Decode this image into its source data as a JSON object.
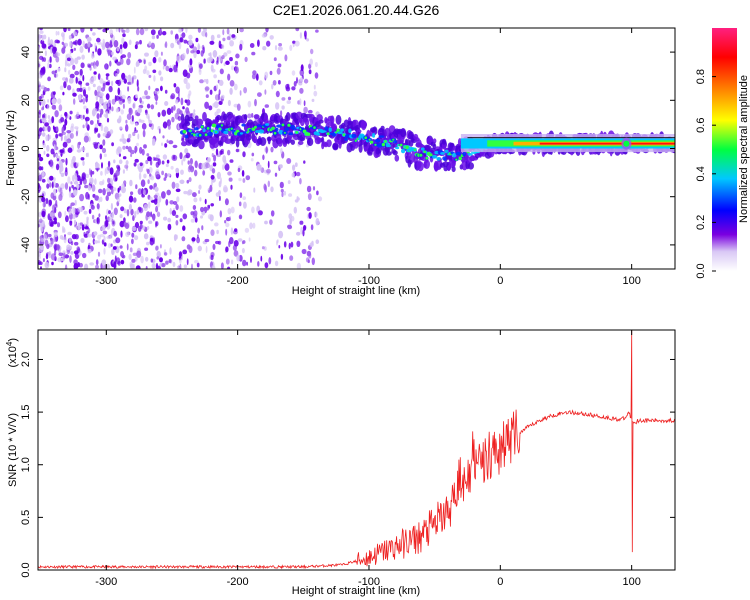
{
  "title": "C2E1.2026.061.20.44.G26",
  "chart_data": [
    {
      "type": "heatmap",
      "xlabel": "Height of straight line (km)",
      "ylabel": "Frequency (Hz)",
      "xlim": [
        -352,
        133
      ],
      "ylim": [
        -50,
        50
      ],
      "xticks": [
        -300,
        -200,
        -100,
        0,
        100
      ],
      "yticks": [
        -40,
        -20,
        0,
        20,
        40
      ],
      "colorbar": {
        "label": "Normalized spectral amplitude",
        "range": [
          0.0,
          1.0
        ],
        "ticks": [
          0.0,
          0.2,
          0.4,
          0.6,
          0.8
        ],
        "tick_labels": [
          "0.0",
          "0.2",
          "0.4",
          "0.6",
          "0.8"
        ],
        "colormap": [
          "#ffffff",
          "#7a00e0",
          "#0000ff",
          "#00c8ff",
          "#00ff40",
          "#ffff00",
          "#ff8000",
          "#ff0000",
          "#ff2080"
        ]
      },
      "ridge": {
        "x": [
          -240,
          -200,
          -150,
          -120,
          -100,
          -80,
          -60,
          -45,
          -35,
          -20,
          0,
          50,
          90,
          100,
          133
        ],
        "y": [
          7,
          8,
          8,
          6,
          4,
          2,
          -2,
          -3,
          -3,
          -1,
          2,
          2,
          2,
          2,
          2
        ]
      }
    },
    {
      "type": "line",
      "xlabel": "Height of straight line (km)",
      "ylabel": "SNR (10 * V/V)",
      "scale_label": "(x10",
      "scale_exponent": "4",
      "xlim": [
        -352,
        133
      ],
      "ylim": [
        0,
        2.28
      ],
      "xticks": [
        -300,
        -200,
        -100,
        0,
        100
      ],
      "yticks": [
        0.0,
        0.5,
        1.0,
        1.5,
        2.0
      ],
      "ytick_labels": [
        "0.0",
        "0.5",
        "1.0",
        "1.5",
        "2.0"
      ],
      "series": [
        {
          "color": "#ee2020",
          "x": [
            -352,
            -300,
            -250,
            -200,
            -150,
            -120,
            -100,
            -80,
            -60,
            -40,
            -30,
            -20,
            -10,
            0,
            10,
            20,
            30,
            40,
            50,
            60,
            70,
            80,
            90,
            95,
            98,
            100,
            102,
            105,
            110,
            120,
            133
          ],
          "y": [
            0.03,
            0.03,
            0.03,
            0.03,
            0.03,
            0.05,
            0.12,
            0.22,
            0.32,
            0.55,
            0.8,
            0.95,
            1.1,
            1.15,
            1.25,
            1.35,
            1.42,
            1.47,
            1.5,
            1.49,
            1.47,
            1.45,
            1.43,
            1.44,
            1.5,
            1.42,
            1.4,
            1.42,
            1.42,
            1.42,
            1.42
          ]
        }
      ]
    }
  ]
}
